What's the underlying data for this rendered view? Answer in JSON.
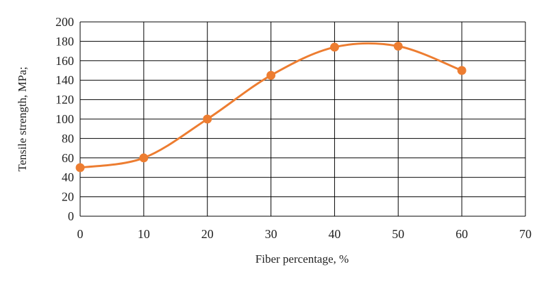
{
  "chart_data": {
    "type": "line",
    "title": "",
    "xlabel": "Fiber percentage, %",
    "ylabel": "Tensile strength, MPa;",
    "xlim": [
      0,
      70
    ],
    "ylim": [
      0,
      200
    ],
    "x_ticks": [
      0,
      10,
      20,
      30,
      40,
      50,
      60,
      70
    ],
    "y_ticks": [
      0,
      20,
      40,
      60,
      80,
      100,
      120,
      140,
      160,
      180,
      200
    ],
    "grid": true,
    "smooth": true,
    "series": [
      {
        "x": [
          0,
          10,
          20,
          30,
          40,
          50,
          60
        ],
        "y": [
          50,
          60,
          100,
          145,
          174,
          175,
          150
        ],
        "color": "#ED7D31",
        "marker": "circle"
      }
    ]
  }
}
